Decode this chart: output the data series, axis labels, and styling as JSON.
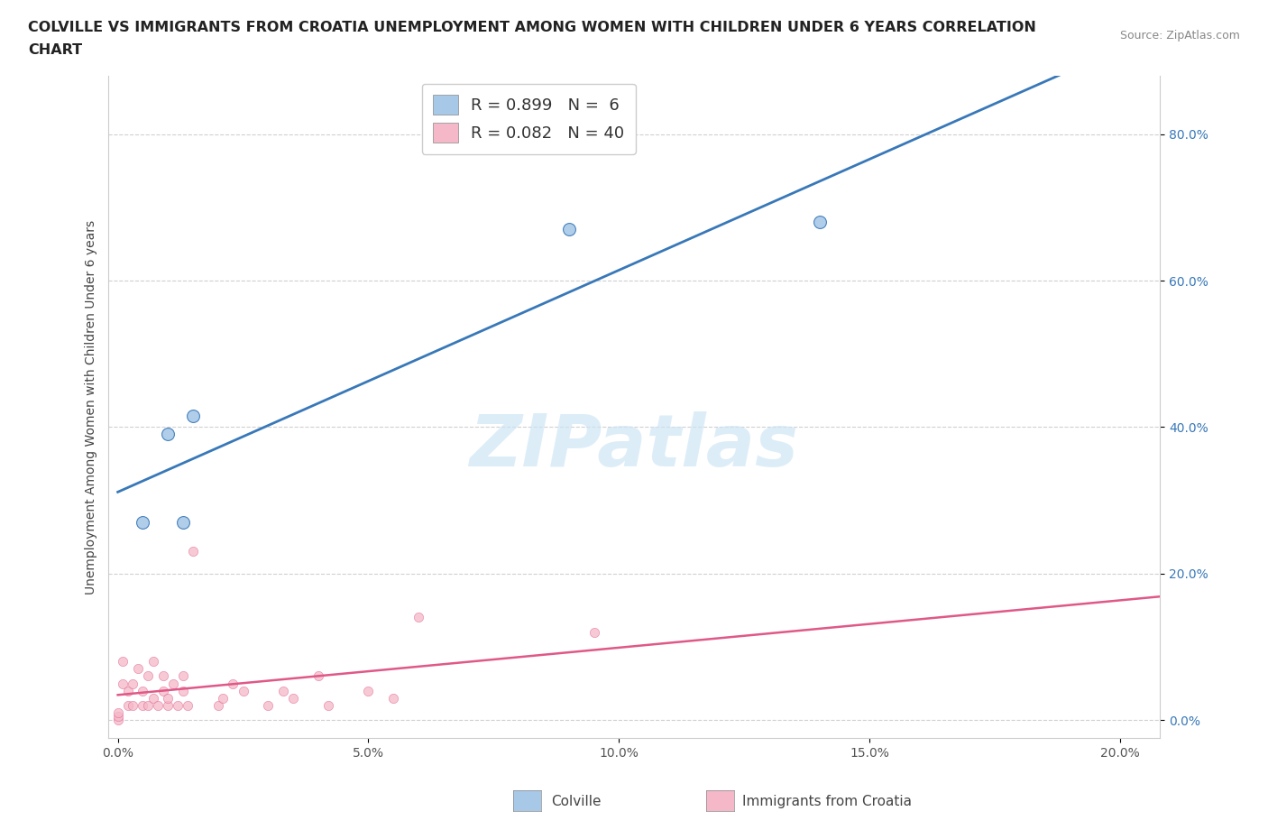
{
  "title_line1": "COLVILLE VS IMMIGRANTS FROM CROATIA UNEMPLOYMENT AMONG WOMEN WITH CHILDREN UNDER 6 YEARS CORRELATION",
  "title_line2": "CHART",
  "source": "Source: ZipAtlas.com",
  "ylabel": "Unemployment Among Women with Children Under 6 years",
  "colville_R": 0.899,
  "colville_N": 6,
  "croatia_R": 0.082,
  "croatia_N": 40,
  "colville_color": "#a8c8e8",
  "croatia_color": "#f4b8c8",
  "colville_line_color": "#3878b8",
  "croatia_line_color": "#e05888",
  "colville_x": [
    0.005,
    0.01,
    0.013,
    0.015,
    0.09,
    0.14
  ],
  "colville_y": [
    0.27,
    0.39,
    0.27,
    0.415,
    0.67,
    0.68
  ],
  "croatia_x": [
    0.0,
    0.0,
    0.0,
    0.001,
    0.001,
    0.002,
    0.002,
    0.003,
    0.003,
    0.004,
    0.005,
    0.005,
    0.006,
    0.006,
    0.007,
    0.007,
    0.008,
    0.009,
    0.009,
    0.01,
    0.01,
    0.011,
    0.012,
    0.013,
    0.013,
    0.014,
    0.015,
    0.02,
    0.021,
    0.023,
    0.025,
    0.03,
    0.033,
    0.035,
    0.04,
    0.042,
    0.05,
    0.055,
    0.06,
    0.095
  ],
  "croatia_y": [
    0.0,
    0.005,
    0.01,
    0.05,
    0.08,
    0.02,
    0.04,
    0.02,
    0.05,
    0.07,
    0.02,
    0.04,
    0.02,
    0.06,
    0.03,
    0.08,
    0.02,
    0.04,
    0.06,
    0.02,
    0.03,
    0.05,
    0.02,
    0.04,
    0.06,
    0.02,
    0.23,
    0.02,
    0.03,
    0.05,
    0.04,
    0.02,
    0.04,
    0.03,
    0.06,
    0.02,
    0.04,
    0.03,
    0.14,
    0.12
  ],
  "xlim": [
    -0.002,
    0.208
  ],
  "ylim": [
    -0.025,
    0.88
  ],
  "xtick_vals": [
    0.0,
    0.05,
    0.1,
    0.15,
    0.2
  ],
  "xtick_labels": [
    "0.0%",
    "5.0%",
    "10.0%",
    "15.0%",
    "20.0%"
  ],
  "ytick_vals": [
    0.0,
    0.2,
    0.4,
    0.6,
    0.8
  ],
  "ytick_labels": [
    "0.0%",
    "20.0%",
    "40.0%",
    "60.0%",
    "80.0%"
  ],
  "watermark": "ZIPatlas",
  "background_color": "#ffffff",
  "grid_color": "#d0d0d0",
  "colville_marker_size": 100,
  "croatia_marker_size": 55,
  "legend_blue": "#a8c8e8",
  "legend_pink": "#f4b8c8",
  "tick_color_right": "#3878b8"
}
